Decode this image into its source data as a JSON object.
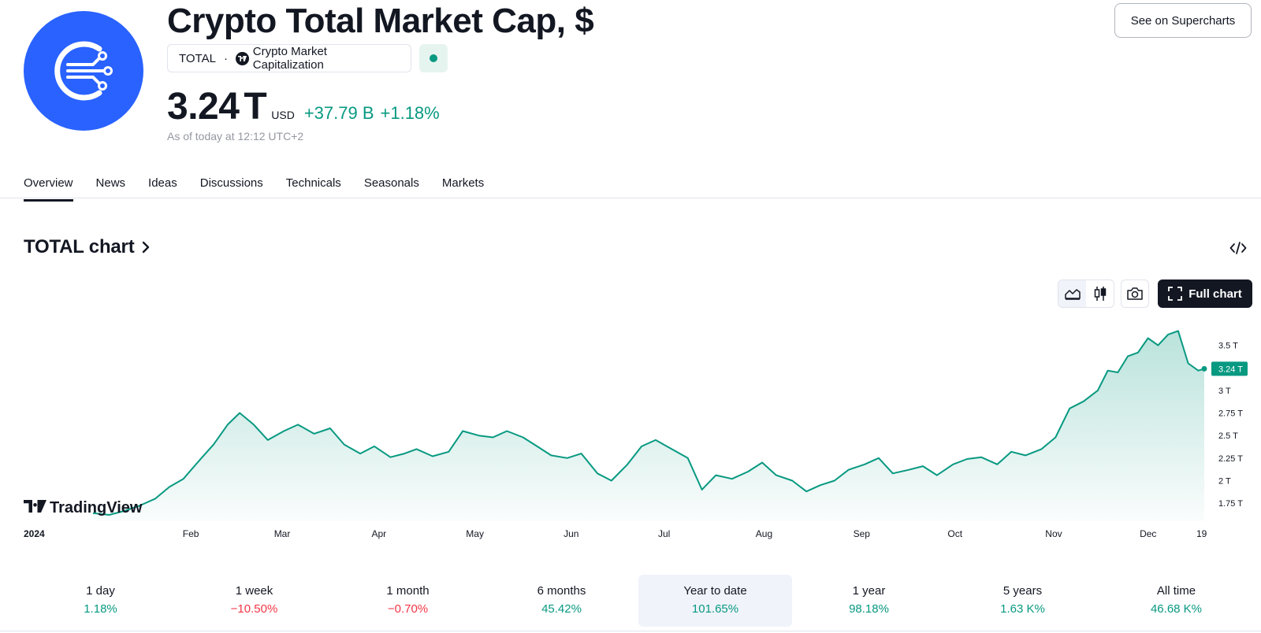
{
  "header": {
    "title": "Crypto Total Market Cap, $",
    "symbol": "TOTAL",
    "symbol_name": "Crypto Market Capitalization",
    "price": "3.24",
    "price_unit": "T",
    "currency": "USD",
    "change_abs": "+37.79 B",
    "change_pct": "+1.18%",
    "as_of": "As of today at 12:12 UTC+2",
    "supercharts_button": "See on Supercharts",
    "accent_color": "#2962ff",
    "positive_color": "#089981",
    "negative_color": "#f23645"
  },
  "tabs": [
    {
      "label": "Overview",
      "active": true
    },
    {
      "label": "News"
    },
    {
      "label": "Ideas"
    },
    {
      "label": "Discussions"
    },
    {
      "label": "Technicals"
    },
    {
      "label": "Seasonals"
    },
    {
      "label": "Markets"
    }
  ],
  "chart_section": {
    "title": "TOTAL chart",
    "full_chart_button": "Full chart",
    "watermark": "TradingView"
  },
  "chart_data": {
    "type": "area",
    "y_unit": "T",
    "ylim": [
      1.55,
      3.75
    ],
    "y_ticks": [
      1.75,
      2,
      2.25,
      2.5,
      2.75,
      3,
      3.25,
      3.5
    ],
    "y_tick_labels": [
      "1.75 T",
      "2 T",
      "2.25 T",
      "2.5 T",
      "2.75 T",
      "3 T",
      "3.5 T"
    ],
    "x_ticks": [
      "2024",
      "Feb",
      "Mar",
      "Apr",
      "May",
      "Jun",
      "Jul",
      "Aug",
      "Sep",
      "Oct",
      "Nov",
      "Dec",
      "19"
    ],
    "last_value_label": "3.24 T",
    "line_color": "#089981",
    "grid": false,
    "x": [
      0,
      8,
      15,
      23,
      31,
      38,
      45,
      52,
      60,
      67,
      73,
      80,
      87,
      95,
      102,
      110,
      118,
      125,
      133,
      140,
      148,
      155,
      161,
      169,
      177,
      184,
      192,
      199,
      206,
      214,
      221,
      228,
      236,
      243,
      251,
      258,
      266,
      273,
      280,
      288,
      296,
      303,
      310,
      318,
      326,
      333,
      340,
      348,
      355
    ],
    "values": [
      1.64,
      1.62,
      1.66,
      1.72,
      1.8,
      1.93,
      2.02,
      2.2,
      2.4,
      2.62,
      2.75,
      2.62,
      2.45,
      2.55,
      2.62,
      2.52,
      2.58,
      2.4,
      2.3,
      2.38,
      2.26,
      2.3,
      2.35,
      2.27,
      2.32,
      2.55,
      2.5,
      2.48,
      2.55,
      2.48,
      2.38,
      2.28,
      2.25,
      2.3,
      2.08,
      2.0,
      2.18,
      2.38,
      2.45,
      2.35,
      2.25,
      1.9,
      2.06,
      2.02,
      2.1,
      2.2,
      2.06,
      2.0,
      1.88
    ]
  },
  "chart_tail": {
    "x": [
      362,
      369,
      376,
      384,
      391,
      398,
      406,
      413,
      420,
      428,
      435,
      442,
      450,
      457,
      464,
      472,
      479,
      486,
      493,
      500,
      505,
      510,
      515,
      520,
      525,
      530,
      535,
      540,
      545,
      550,
      553
    ],
    "values": [
      1.95,
      2.0,
      2.12,
      2.18,
      2.25,
      2.08,
      2.12,
      2.16,
      2.06,
      2.18,
      2.24,
      2.26,
      2.18,
      2.32,
      2.28,
      2.35,
      2.48,
      2.8,
      2.88,
      3.0,
      3.22,
      3.2,
      3.38,
      3.42,
      3.58,
      3.5,
      3.62,
      3.66,
      3.3,
      3.22,
      3.24
    ]
  },
  "performance": [
    {
      "label": "1 day",
      "value": "1.18%",
      "sign": "pos"
    },
    {
      "label": "1 week",
      "value": "−10.50%",
      "sign": "neg"
    },
    {
      "label": "1 month",
      "value": "−0.70%",
      "sign": "neg"
    },
    {
      "label": "6 months",
      "value": "45.42%",
      "sign": "pos"
    },
    {
      "label": "Year to date",
      "value": "101.65%",
      "sign": "pos",
      "active": true
    },
    {
      "label": "1 year",
      "value": "98.18%",
      "sign": "pos"
    },
    {
      "label": "5 years",
      "value": "1.63 K%",
      "sign": "pos"
    },
    {
      "label": "All time",
      "value": "46.68 K%",
      "sign": "pos"
    }
  ]
}
